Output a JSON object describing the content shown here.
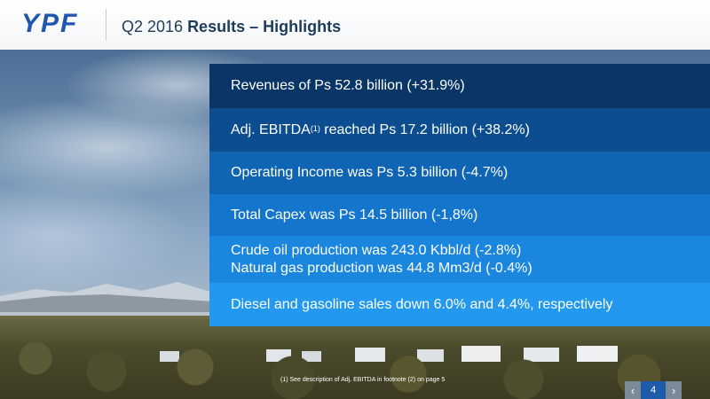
{
  "header": {
    "logo_text": "YPF",
    "title_prefix": "Q2 2016 ",
    "title_strong": "Results – Highlights"
  },
  "highlights": [
    {
      "line1": "Revenues of Ps 52.8 billion (+31.9%)"
    },
    {
      "pre": "Adj. EBITDA",
      "sup": "(1)",
      "post": " reached Ps 17.2 billion (+38.2%)"
    },
    {
      "line1": "Operating Income was Ps 5.3 billion (-4.7%)"
    },
    {
      "line1": "Total Capex was Ps 14.5 billion (-1,8%)"
    },
    {
      "line1": "Crude oil production was 243.0 Kbbl/d (-2.8%)",
      "line2": "Natural gas production was 44.8 Mm3/d (-0.4%)"
    },
    {
      "line1": "Diesel and gasoline sales down 6.0% and 4.4%, respectively"
    }
  ],
  "footnote": "(1) See description of Adj. EBITDA in footnote (2) on page 5",
  "pager": {
    "prev_glyph": "‹",
    "page_number": "4",
    "next_glyph": "›"
  },
  "colors": {
    "brand_blue": "#1f57b0",
    "panel_row_1": "#093666",
    "panel_row_6": "#2299ee"
  }
}
